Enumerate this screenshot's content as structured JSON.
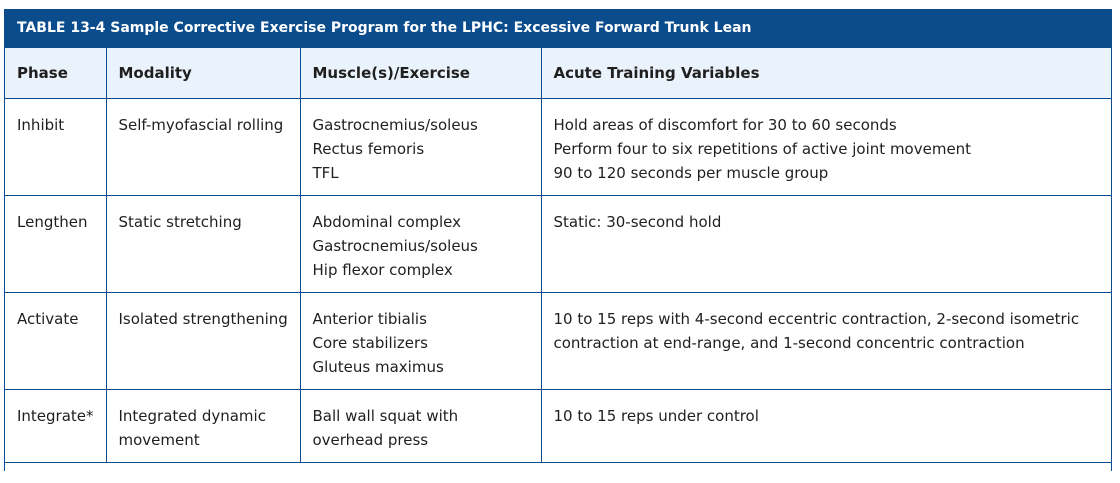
{
  "caption": "TABLE 13-4 Sample Corrective Exercise Program for the LPHC: Excessive Forward Trunk Lean",
  "headers": [
    "Phase",
    "Modality",
    "Muscle(s)/Exercise",
    "Acute Training Variables"
  ],
  "rows": [
    {
      "phase": "Inhibit",
      "modality": [
        "Self-myofascial rolling"
      ],
      "muscles": [
        "Gastrocnemius/soleus",
        "Rectus femoris",
        "TFL"
      ],
      "variables": [
        "Hold areas of discomfort for 30 to 60 seconds",
        "Perform four to six repetitions of active joint movement",
        "90 to 120 seconds per muscle group"
      ]
    },
    {
      "phase": "Lengthen",
      "modality": [
        "Static stretching"
      ],
      "muscles": [
        "Abdominal complex",
        "Gastrocnemius/soleus",
        "Hip flexor complex"
      ],
      "variables": [
        "Static: 30-second hold"
      ]
    },
    {
      "phase": "Activate",
      "modality": [
        "Isolated strengthening"
      ],
      "muscles": [
        "Anterior tibialis",
        "Core stabilizers",
        "Gluteus maximus"
      ],
      "variables": [
        "10 to 15 reps with 4-second eccentric contraction, 2-second isometric",
        "contraction at end-range, and 1-second concentric contraction"
      ]
    },
    {
      "phase": "Integrate*",
      "modality": [
        "Integrated dynamic",
        "movement"
      ],
      "muscles": [
        "Ball wall squat with",
        "overhead press"
      ],
      "variables": [
        "10 to 15 reps under control"
      ]
    }
  ],
  "colors": {
    "header_bar": "#0b4c8c",
    "column_header_bg": "#eaf2fb",
    "border": "#0b4c8c"
  }
}
